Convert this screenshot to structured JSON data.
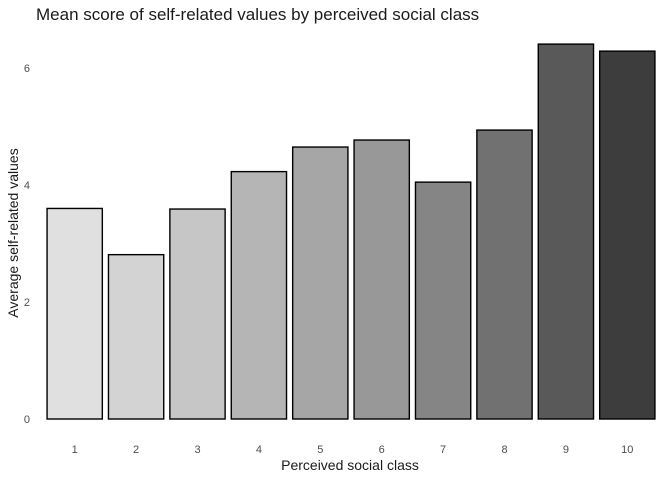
{
  "chart_data": {
    "type": "bar",
    "title": "Mean score of self-related values by perceived social class",
    "xlabel": "Perceived social class",
    "ylabel": "Average self-related values",
    "categories": [
      "1",
      "2",
      "3",
      "4",
      "5",
      "6",
      "7",
      "8",
      "9",
      "10"
    ],
    "values": [
      3.6,
      2.81,
      3.59,
      4.23,
      4.65,
      4.77,
      4.05,
      4.94,
      6.41,
      6.29
    ],
    "ylim": [
      0,
      6.6
    ],
    "yticks": [
      0,
      2,
      4,
      6
    ],
    "grid": false,
    "legend": "none",
    "fill_colors": [
      "#e0e0e0",
      "#d3d3d3",
      "#c6c6c6",
      "#b5b5b5",
      "#a6a6a6",
      "#989898",
      "#858585",
      "#717171",
      "#595959",
      "#3d3d3d"
    ]
  }
}
